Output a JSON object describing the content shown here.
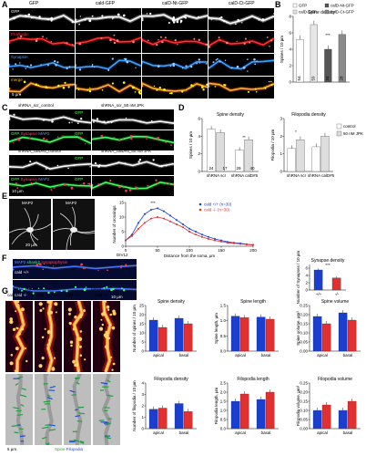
{
  "panels": {
    "A": {
      "letter": "A",
      "columns": [
        "GFP",
        "cald-GFP",
        "calD-Nt-GFP",
        "calD-Ct-GFP"
      ],
      "rows": [
        "GFP",
        "Phalloidin",
        "Synapsin",
        "merge"
      ],
      "scale": "5 µm"
    },
    "B": {
      "letter": "B",
      "title": "Spine density",
      "ylabel": "Spines / 10 µm",
      "legend": [
        "GFP",
        "calD-Nt-GFP",
        "calD-GFP",
        "calD-Ct-GFP"
      ],
      "ns": [
        "54",
        "59",
        "34",
        "28"
      ],
      "sig": "***"
    },
    "C": {
      "letter": "C",
      "labels": [
        "shRNA_scr_control",
        "shRNA_scr_50 nM JPK",
        "shRNA_calD#5_control",
        "shRNA_calD#5_50 nM JPK"
      ],
      "scale": "10 µm",
      "channels": [
        "GFP",
        "Synapsin",
        "MAP2"
      ]
    },
    "D": {
      "letter": "D",
      "titles": [
        "Spine density",
        "Filopodia density"
      ],
      "ylabels": [
        "Spines / 10 µm",
        "Filopodia / 10 µm"
      ],
      "xlabels": [
        "shRNA scr",
        "shRNA calD#5"
      ],
      "legend": [
        "control",
        "50 nM JPK"
      ],
      "ns": [
        "24",
        "17",
        "29",
        "40"
      ],
      "sig": [
        "**",
        "*"
      ]
    },
    "E": {
      "letter": "E",
      "images": [
        "cald +/+",
        "cald -/-"
      ],
      "tag": "DIV8",
      "channel": "MAP2",
      "scale": "20 µm",
      "ylabel": "Number of crossings",
      "xlabel": "Distance from the soma, µm",
      "legend": [
        "cald +/+ (n=30)",
        "cald -/- (n=30)"
      ],
      "sig": "***"
    },
    "F": {
      "letter": "F",
      "channels": [
        "MAP2",
        "shank2",
        "synaptophysin"
      ],
      "tag": "DIV12",
      "images": [
        "cald +/+",
        "cald -/-"
      ],
      "scale": "10 µm",
      "title": "Synapse density",
      "ylabel": "Number of Synapses / 10 µm",
      "xlabels": [
        "+/+",
        "-/-"
      ],
      "sig": "***"
    },
    "G": {
      "letter": "G",
      "region": "CA1:",
      "groups": [
        "apical",
        "basal"
      ],
      "cols": [
        "cald +/+",
        "cald -/-",
        "cald +/+",
        "cald -/-"
      ],
      "legend": [
        "Spine",
        "Filopodia"
      ],
      "scale": "5 µm"
    },
    "H": {
      "letter": "H",
      "titles": [
        "Spine density",
        "Spine length",
        "Spine volume",
        "Filopodia density",
        "Filopodia length",
        "Filopodia volume"
      ],
      "ylabels": [
        "Number of spines / 10 µm",
        "Spine length, µm",
        "Spine volume, µm³",
        "Number of filopodia / 10 µm",
        "Filopodia length, µm",
        "Filopodia volume, µm³"
      ],
      "xlabels": [
        "apical",
        "basal"
      ],
      "genotypes": [
        "+/+",
        "-/-"
      ]
    }
  },
  "chart_data": [
    {
      "type": "bar",
      "title": "Spine density",
      "categories": [
        "GFP",
        "calD-GFP",
        "calD-Nt-GFP",
        "calD-Ct-GFP"
      ],
      "values": [
        5.2,
        7.0,
        4.0,
        5.8
      ],
      "ylim": [
        0,
        8
      ],
      "yticks": [
        0,
        2,
        4,
        6,
        8
      ]
    },
    {
      "type": "bar",
      "title": "Spine density",
      "categories": [
        "shRNA scr",
        "shRNA calD#5"
      ],
      "series": [
        {
          "name": "control",
          "values": [
            4.8,
            2.4
          ]
        },
        {
          "name": "50 nM JPK",
          "values": [
            4.4,
            3.6
          ]
        }
      ],
      "ylim": [
        0,
        6
      ],
      "yticks": [
        0,
        2,
        4,
        6
      ]
    },
    {
      "type": "bar",
      "title": "Filopodia density",
      "categories": [
        "shRNA scr",
        "shRNA calD#5"
      ],
      "series": [
        {
          "name": "control",
          "values": [
            1.3,
            1.4
          ]
        },
        {
          "name": "50 nM JPK",
          "values": [
            1.8,
            2.0
          ]
        }
      ],
      "ylim": [
        0,
        3
      ],
      "yticks": [
        0,
        1,
        2,
        3
      ]
    },
    {
      "type": "line",
      "xlabel": "Distance from the soma, µm",
      "ylabel": "Number of crossings",
      "x": [
        0,
        10,
        20,
        30,
        40,
        50,
        60,
        70,
        80,
        90,
        100,
        110,
        120,
        130,
        140,
        150,
        160,
        170,
        180,
        190,
        200
      ],
      "series": [
        {
          "name": "cald +/+ (n=30)",
          "values": [
            2,
            4,
            8,
            11,
            12.5,
            13,
            12,
            10.5,
            9,
            7.5,
            6,
            5,
            4,
            3.2,
            2.5,
            2,
            1.5,
            1.2,
            1,
            0.7,
            0.5
          ]
        },
        {
          "name": "cald -/- (n=30)",
          "values": [
            2,
            3.5,
            6,
            8,
            9.5,
            10,
            9.5,
            8.5,
            7.5,
            6.5,
            5,
            4,
            3.2,
            2.5,
            2,
            1.6,
            1.2,
            1,
            0.8,
            0.6,
            0.4
          ]
        }
      ],
      "ylim": [
        0,
        15
      ],
      "yticks": [
        0,
        5,
        10,
        15
      ],
      "xticks": [
        0,
        50,
        100,
        150,
        200
      ]
    },
    {
      "type": "bar",
      "title": "Synapse density",
      "categories": [
        "+/+",
        "-/-"
      ],
      "values": [
        5.5,
        3.3
      ],
      "ylim": [
        0,
        7
      ],
      "yticks": [
        0,
        2,
        4,
        6
      ]
    },
    {
      "type": "bar",
      "title": "Spine density",
      "categories": [
        "apical",
        "basal"
      ],
      "series": [
        {
          "name": "+/+",
          "values": [
            17,
            18
          ]
        },
        {
          "name": "-/-",
          "values": [
            13,
            15
          ]
        }
      ],
      "ylim": [
        0,
        25
      ],
      "yticks": [
        0,
        5,
        10,
        15,
        20,
        25
      ]
    },
    {
      "type": "bar",
      "title": "Spine length",
      "categories": [
        "apical",
        "basal"
      ],
      "series": [
        {
          "name": "+/+",
          "values": [
            1.15,
            1.12
          ]
        },
        {
          "name": "-/-",
          "values": [
            1.1,
            1.05
          ]
        }
      ],
      "ylim": [
        0,
        1.5
      ],
      "yticks": [
        0,
        0.5,
        1.0,
        1.5
      ]
    },
    {
      "type": "bar",
      "title": "Spine volume",
      "categories": [
        "apical",
        "basal"
      ],
      "series": [
        {
          "name": "+/+",
          "values": [
            0.19,
            0.21
          ]
        },
        {
          "name": "-/-",
          "values": [
            0.15,
            0.17
          ]
        }
      ],
      "ylim": [
        0,
        0.25
      ],
      "yticks": [
        0,
        0.05,
        0.1,
        0.15,
        0.2,
        0.25
      ]
    },
    {
      "type": "bar",
      "title": "Filopodia density",
      "categories": [
        "apical",
        "basal"
      ],
      "series": [
        {
          "name": "+/+",
          "values": [
            1.7,
            2.2
          ]
        },
        {
          "name": "-/-",
          "values": [
            1.8,
            1.5
          ]
        }
      ],
      "ylim": [
        0,
        4
      ],
      "yticks": [
        0,
        1,
        2,
        3,
        4
      ]
    },
    {
      "type": "bar",
      "title": "Filopodia length",
      "categories": [
        "apical",
        "basal"
      ],
      "series": [
        {
          "name": "+/+",
          "values": [
            1.5,
            1.6
          ]
        },
        {
          "name": "-/-",
          "values": [
            1.9,
            2.0
          ]
        }
      ],
      "ylim": [
        0,
        2.5
      ],
      "yticks": [
        0,
        0.5,
        1.0,
        1.5,
        2.0,
        2.5
      ]
    },
    {
      "type": "bar",
      "title": "Filopodia volume",
      "categories": [
        "apical",
        "basal"
      ],
      "series": [
        {
          "name": "+/+",
          "values": [
            0.1,
            0.1
          ]
        },
        {
          "name": "-/-",
          "values": [
            0.13,
            0.15
          ]
        }
      ],
      "ylim": [
        0,
        0.25
      ],
      "yticks": [
        0,
        0.05,
        0.1,
        0.15,
        0.2,
        0.25
      ]
    }
  ]
}
